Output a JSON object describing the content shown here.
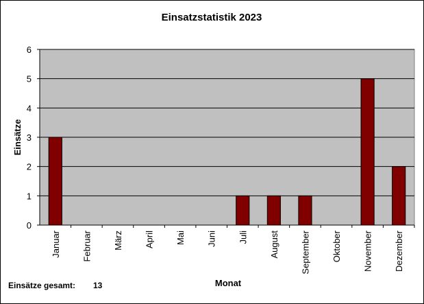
{
  "chart_data": {
    "type": "bar",
    "title": "Einsatzstatistik 2023",
    "xlabel": "Monat",
    "ylabel": "Einsätze",
    "categories": [
      "Januar",
      "Februar",
      "März",
      "April",
      "Mai",
      "Juni",
      "Juli",
      "August",
      "September",
      "Oktober",
      "November",
      "Dezember"
    ],
    "values": [
      3,
      0,
      0,
      0,
      0,
      0,
      1,
      1,
      1,
      0,
      5,
      2
    ],
    "ylim": [
      0,
      6
    ],
    "yticks": [
      "0",
      "1",
      "2",
      "3",
      "4",
      "5",
      "6"
    ],
    "grid": true,
    "colors": {
      "plot_bg": "#c0c0c0",
      "bar": "#800000",
      "grid": "#000000"
    }
  },
  "footer": {
    "label": "Einsätze gesamt:",
    "value": "13"
  }
}
